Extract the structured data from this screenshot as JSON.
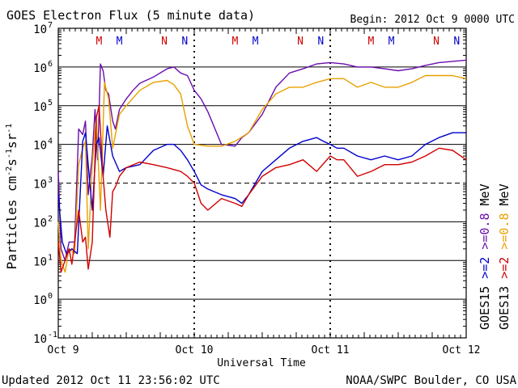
{
  "header": {
    "title": "GOES Electron Flux (5 minute data)",
    "begin": "Begin: 2012 Oct 9 0000 UTC"
  },
  "footer": {
    "updated": "Updated 2012 Oct 11 23:56:02 UTC",
    "credit": "NOAA/SWPC Boulder, CO USA"
  },
  "markers": [
    {
      "day": 0.3,
      "label": "M",
      "color": "#d00000"
    },
    {
      "day": 0.45,
      "label": "M",
      "color": "#0000cc"
    },
    {
      "day": 0.78,
      "label": "N",
      "color": "#d00000"
    },
    {
      "day": 0.93,
      "label": "N",
      "color": "#0000cc"
    },
    {
      "day": 1.3,
      "label": "M",
      "color": "#d00000"
    },
    {
      "day": 1.45,
      "label": "M",
      "color": "#0000cc"
    },
    {
      "day": 1.78,
      "label": "N",
      "color": "#d00000"
    },
    {
      "day": 1.93,
      "label": "N",
      "color": "#0000cc"
    },
    {
      "day": 2.3,
      "label": "M",
      "color": "#d00000"
    },
    {
      "day": 2.45,
      "label": "M",
      "color": "#0000cc"
    },
    {
      "day": 2.78,
      "label": "N",
      "color": "#d00000"
    },
    {
      "day": 2.93,
      "label": "N",
      "color": "#0000cc"
    }
  ],
  "right_legend": {
    "col1": [
      {
        "text": "GOES15",
        "color": "#000000"
      },
      {
        "text": ">=2",
        "color": "#0000cc"
      },
      {
        "text": ">=0.8",
        "color": "#6a0dad"
      },
      {
        "text": "MeV",
        "color": "#000000"
      }
    ],
    "col2": [
      {
        "text": "GOES13",
        "color": "#000000"
      },
      {
        "text": ">=2",
        "color": "#d00000"
      },
      {
        "text": ">=0.8",
        "color": "#e8a000"
      },
      {
        "text": "MeV",
        "color": "#000000"
      }
    ]
  },
  "chart_data": {
    "type": "line",
    "title": "GOES Electron Flux (5 minute data)",
    "xlabel": "Universal Time",
    "ylabel": "Particles cm-2s-1sr-1",
    "xlim": [
      0,
      3
    ],
    "ylim_log10": [
      -1,
      7
    ],
    "x_ticks": [
      {
        "day": 0,
        "label": "Oct 9"
      },
      {
        "day": 1,
        "label": "Oct 10"
      },
      {
        "day": 2,
        "label": "Oct 11"
      },
      {
        "day": 3,
        "label": "Oct 12"
      }
    ],
    "y_ticks": [
      {
        "exp": 7,
        "label": "10",
        "sup": "7"
      },
      {
        "exp": 6,
        "label": "10",
        "sup": "6"
      },
      {
        "exp": 5,
        "label": "10",
        "sup": "5"
      },
      {
        "exp": 4,
        "label": "10",
        "sup": "4"
      },
      {
        "exp": 3,
        "label": "10",
        "sup": "3"
      },
      {
        "exp": 2,
        "label": "10",
        "sup": "2"
      },
      {
        "exp": 1,
        "label": "10",
        "sup": "1"
      },
      {
        "exp": 0,
        "label": "10",
        "sup": "0"
      },
      {
        "exp": -1,
        "label": "10",
        "sup": "-1"
      }
    ],
    "grid": "horizontal at each decade; dashed at 1e3",
    "series": [
      {
        "name": "GOES15 >=0.8 MeV",
        "color": "#6a0dad",
        "x": [
          0,
          0.02,
          0.05,
          0.08,
          0.12,
          0.15,
          0.18,
          0.2,
          0.22,
          0.25,
          0.27,
          0.29,
          0.31,
          0.33,
          0.35,
          0.37,
          0.4,
          0.42,
          0.45,
          0.5,
          0.55,
          0.6,
          0.7,
          0.8,
          0.85,
          0.9,
          0.95,
          1.0,
          1.05,
          1.1,
          1.2,
          1.3,
          1.35,
          1.4,
          1.5,
          1.6,
          1.7,
          1.8,
          1.9,
          2.0,
          2.1,
          2.2,
          2.3,
          2.4,
          2.5,
          2.6,
          2.7,
          2.8,
          2.9,
          3.0
        ],
        "y": [
          2000,
          20,
          10,
          30,
          30,
          25000,
          18000,
          40000,
          500,
          5000,
          80000,
          4000,
          1200000,
          800000,
          250000,
          200000,
          40000,
          25000,
          80000,
          150000,
          250000,
          380000,
          550000,
          900000,
          1000000,
          700000,
          600000,
          250000,
          150000,
          70000,
          10000,
          9000,
          15000,
          20000,
          60000,
          300000,
          700000,
          900000,
          1200000,
          1300000,
          1200000,
          1000000,
          1000000,
          900000,
          800000,
          900000,
          1100000,
          1300000,
          1400000,
          1500000
        ]
      },
      {
        "name": "GOES13 >=0.8 MeV",
        "color": "#e8a000",
        "x": [
          0,
          0.02,
          0.05,
          0.08,
          0.12,
          0.15,
          0.18,
          0.2,
          0.22,
          0.25,
          0.28,
          0.31,
          0.34,
          0.37,
          0.4,
          0.45,
          0.5,
          0.6,
          0.7,
          0.8,
          0.85,
          0.9,
          0.95,
          1.0,
          1.1,
          1.2,
          1.3,
          1.4,
          1.5,
          1.6,
          1.7,
          1.8,
          1.9,
          2.0,
          2.05,
          2.1,
          2.2,
          2.3,
          2.4,
          2.5,
          2.6,
          2.7,
          2.8,
          2.9,
          3.0
        ],
        "y": [
          100,
          10,
          5,
          20,
          15,
          3000,
          8000,
          12000,
          20,
          3000,
          50000,
          200,
          400000,
          150000,
          8000,
          60000,
          100000,
          250000,
          400000,
          450000,
          350000,
          200000,
          30000,
          10000,
          9000,
          9000,
          12000,
          20000,
          80000,
          200000,
          300000,
          300000,
          400000,
          500000,
          500000,
          500000,
          300000,
          400000,
          300000,
          300000,
          400000,
          600000,
          600000,
          600000,
          500000
        ]
      },
      {
        "name": "GOES15 >=2 MeV",
        "color": "#0000cc",
        "x": [
          0,
          0.03,
          0.06,
          0.1,
          0.14,
          0.18,
          0.2,
          0.22,
          0.25,
          0.28,
          0.3,
          0.33,
          0.36,
          0.4,
          0.45,
          0.5,
          0.6,
          0.7,
          0.8,
          0.85,
          0.9,
          0.95,
          1.0,
          1.05,
          1.1,
          1.2,
          1.3,
          1.35,
          1.4,
          1.5,
          1.6,
          1.7,
          1.8,
          1.9,
          1.95,
          2.0,
          2.05,
          2.1,
          2.2,
          2.3,
          2.4,
          2.5,
          2.6,
          2.7,
          2.8,
          2.9,
          3.0
        ],
        "y": [
          500,
          30,
          15,
          20,
          15,
          12000,
          20000,
          3000,
          200,
          10000,
          15000,
          1500,
          30000,
          5000,
          2000,
          2500,
          3000,
          7000,
          10000,
          10000,
          7000,
          4000,
          2000,
          900,
          700,
          500,
          400,
          300,
          500,
          2000,
          4000,
          8000,
          12000,
          15000,
          12000,
          10000,
          8000,
          8000,
          5000,
          4000,
          5000,
          4000,
          5000,
          10000,
          15000,
          20000,
          20000
        ]
      },
      {
        "name": "GOES13 >=2 MeV",
        "color": "#d00000",
        "x": [
          0,
          0.02,
          0.05,
          0.08,
          0.1,
          0.12,
          0.15,
          0.18,
          0.2,
          0.22,
          0.25,
          0.28,
          0.3,
          0.33,
          0.35,
          0.38,
          0.4,
          0.42,
          0.45,
          0.5,
          0.6,
          0.7,
          0.8,
          0.9,
          0.95,
          1.0,
          1.05,
          1.1,
          1.2,
          1.3,
          1.35,
          1.4,
          1.5,
          1.6,
          1.7,
          1.8,
          1.9,
          2.0,
          2.05,
          2.1,
          2.2,
          2.3,
          2.4,
          2.5,
          2.6,
          2.7,
          2.8,
          2.9,
          3.0
        ],
        "y": [
          30,
          5,
          10,
          20,
          8,
          30,
          200,
          30,
          40,
          6,
          30,
          50000,
          100000,
          1500,
          200,
          40,
          600,
          800,
          1500,
          2500,
          3500,
          3000,
          2500,
          2000,
          1500,
          1000,
          300,
          200,
          400,
          300,
          250,
          500,
          1500,
          2500,
          3000,
          4000,
          2000,
          5000,
          4000,
          4000,
          1500,
          2000,
          3000,
          3000,
          3500,
          5000,
          8000,
          7000,
          4000
        ]
      }
    ]
  }
}
